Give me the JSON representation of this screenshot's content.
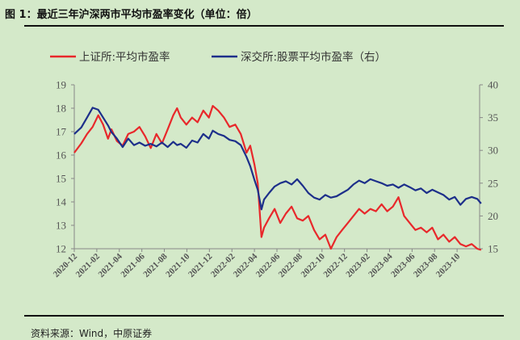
{
  "figure": {
    "title": "图 1：最近三年沪深两市平均市盈率变化（单位：倍）",
    "source": "资料来源：Wind，中原证券"
  },
  "chart_data": {
    "type": "line",
    "title": "",
    "xlabel": "",
    "ylabel": "",
    "left_axis": {
      "ylim": [
        12,
        19
      ],
      "ticks": [
        "12",
        "13",
        "14",
        "15",
        "16",
        "17",
        "18",
        "19"
      ]
    },
    "right_axis": {
      "ylim": [
        15,
        40
      ],
      "ticks": [
        "15",
        "20",
        "25",
        "30",
        "35",
        "40"
      ]
    },
    "x_range": [
      "2020-12",
      "2023-12"
    ],
    "x_ticks": [
      "2020-12",
      "2021-02",
      "2021-04",
      "2021-06",
      "2021-08",
      "2021-10",
      "2021-12",
      "2022-02",
      "2022-04",
      "2022-06",
      "2022-08",
      "2022-10",
      "2022-12",
      "2023-02",
      "2023-04",
      "2023-06",
      "2023-08",
      "2023-10"
    ],
    "grid": false,
    "legend": {
      "position": "top"
    },
    "series": [
      {
        "name": "上证所:平均市盈率",
        "axis": "left",
        "color": "#e8282b",
        "x": [
          "2020-12-01",
          "2020-12-20",
          "2021-01-05",
          "2021-01-20",
          "2021-02-05",
          "2021-02-18",
          "2021-03-01",
          "2021-03-10",
          "2021-03-25",
          "2021-04-10",
          "2021-04-25",
          "2021-05-10",
          "2021-05-25",
          "2021-06-10",
          "2021-06-25",
          "2021-07-10",
          "2021-07-25",
          "2021-08-10",
          "2021-08-25",
          "2021-09-05",
          "2021-09-15",
          "2021-09-30",
          "2021-10-15",
          "2021-10-30",
          "2021-11-15",
          "2021-11-30",
          "2021-12-10",
          "2021-12-25",
          "2022-01-10",
          "2022-01-25",
          "2022-02-10",
          "2022-02-25",
          "2022-03-10",
          "2022-03-20",
          "2022-04-01",
          "2022-04-10",
          "2022-04-20",
          "2022-04-27",
          "2022-05-10",
          "2022-05-25",
          "2022-06-10",
          "2022-06-25",
          "2022-07-10",
          "2022-07-25",
          "2022-08-10",
          "2022-08-25",
          "2022-09-10",
          "2022-09-25",
          "2022-10-10",
          "2022-10-25",
          "2022-11-10",
          "2022-11-25",
          "2022-12-10",
          "2022-12-25",
          "2023-01-10",
          "2023-01-25",
          "2023-02-10",
          "2023-02-25",
          "2023-03-10",
          "2023-03-25",
          "2023-04-10",
          "2023-04-25",
          "2023-05-10",
          "2023-05-25",
          "2023-06-10",
          "2023-06-25",
          "2023-07-10",
          "2023-07-25",
          "2023-08-10",
          "2023-08-25",
          "2023-09-10",
          "2023-09-25",
          "2023-10-10",
          "2023-10-25",
          "2023-11-10",
          "2023-11-25",
          "2023-12-05"
        ],
        "values": [
          16.1,
          16.5,
          16.9,
          17.2,
          17.7,
          17.3,
          16.7,
          17.1,
          16.6,
          16.4,
          16.9,
          17.0,
          17.2,
          16.8,
          16.3,
          16.9,
          16.5,
          17.1,
          17.7,
          18.0,
          17.6,
          17.3,
          17.6,
          17.4,
          17.9,
          17.6,
          18.1,
          17.9,
          17.6,
          17.2,
          17.3,
          16.9,
          16.1,
          16.4,
          15.6,
          14.8,
          12.5,
          12.9,
          13.3,
          13.7,
          13.1,
          13.5,
          13.8,
          13.3,
          13.2,
          13.4,
          12.8,
          12.4,
          12.6,
          12.0,
          12.5,
          12.8,
          13.1,
          13.4,
          13.7,
          13.5,
          13.7,
          13.6,
          13.9,
          13.6,
          13.8,
          14.2,
          13.4,
          13.1,
          12.8,
          12.9,
          12.7,
          12.9,
          12.4,
          12.6,
          12.3,
          12.5,
          12.2,
          12.1,
          12.2,
          12.0,
          11.95
        ]
      },
      {
        "name": "深交所:股票平均市盈率（右）",
        "axis": "right",
        "color": "#1d2f8a",
        "x": [
          "2020-12-01",
          "2020-12-20",
          "2021-01-05",
          "2021-01-20",
          "2021-02-05",
          "2021-02-18",
          "2021-03-01",
          "2021-03-10",
          "2021-03-25",
          "2021-04-10",
          "2021-04-25",
          "2021-05-10",
          "2021-05-25",
          "2021-06-10",
          "2021-06-25",
          "2021-07-10",
          "2021-07-25",
          "2021-08-10",
          "2021-08-25",
          "2021-09-05",
          "2021-09-15",
          "2021-09-30",
          "2021-10-15",
          "2021-10-30",
          "2021-11-15",
          "2021-11-30",
          "2021-12-10",
          "2021-12-25",
          "2022-01-10",
          "2022-01-25",
          "2022-02-10",
          "2022-02-25",
          "2022-03-10",
          "2022-03-20",
          "2022-04-01",
          "2022-04-10",
          "2022-04-20",
          "2022-04-27",
          "2022-05-10",
          "2022-05-25",
          "2022-06-10",
          "2022-06-25",
          "2022-07-10",
          "2022-07-25",
          "2022-08-10",
          "2022-08-25",
          "2022-09-10",
          "2022-09-25",
          "2022-10-10",
          "2022-10-25",
          "2022-11-10",
          "2022-11-25",
          "2022-12-10",
          "2022-12-25",
          "2023-01-10",
          "2023-01-25",
          "2023-02-10",
          "2023-02-25",
          "2023-03-10",
          "2023-03-25",
          "2023-04-10",
          "2023-04-25",
          "2023-05-10",
          "2023-05-25",
          "2023-06-10",
          "2023-06-25",
          "2023-07-10",
          "2023-07-25",
          "2023-08-10",
          "2023-08-25",
          "2023-09-10",
          "2023-09-25",
          "2023-10-10",
          "2023-10-25",
          "2023-11-10",
          "2023-11-25",
          "2023-12-05"
        ],
        "values": [
          32.5,
          33.5,
          35.0,
          36.5,
          36.2,
          35.0,
          33.8,
          32.8,
          31.8,
          30.5,
          31.8,
          30.8,
          31.2,
          30.7,
          31.0,
          30.6,
          31.2,
          30.5,
          31.3,
          30.8,
          31.0,
          30.4,
          31.5,
          31.2,
          32.5,
          31.8,
          33.0,
          32.5,
          32.2,
          31.6,
          31.4,
          30.8,
          29.0,
          27.6,
          25.5,
          24.0,
          21.0,
          22.5,
          23.5,
          24.5,
          25.0,
          25.3,
          24.8,
          25.6,
          24.6,
          23.5,
          22.8,
          22.5,
          23.2,
          22.8,
          23.0,
          23.5,
          24.0,
          24.8,
          25.4,
          25.0,
          25.6,
          25.3,
          25.0,
          24.6,
          24.8,
          24.3,
          24.8,
          24.4,
          23.9,
          24.2,
          23.5,
          24.0,
          23.6,
          23.2,
          22.5,
          22.9,
          21.7,
          22.6,
          22.9,
          22.6,
          21.9
        ]
      }
    ]
  }
}
